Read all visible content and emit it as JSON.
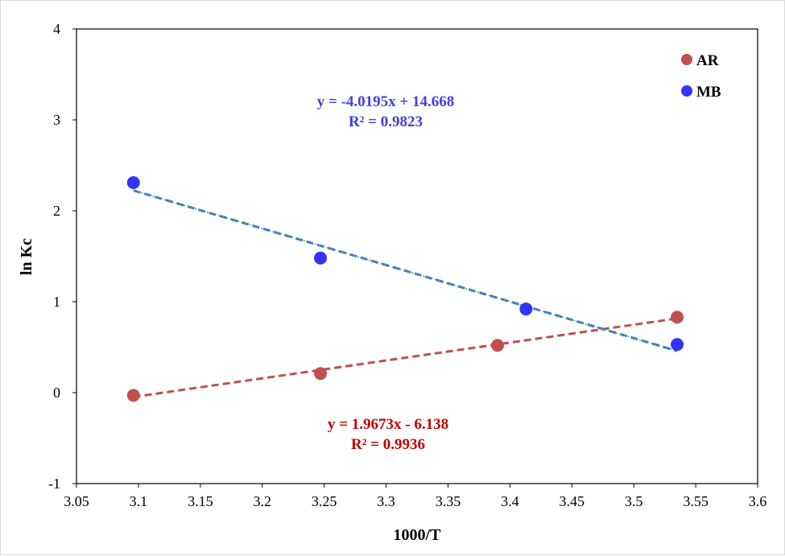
{
  "chart_data": {
    "type": "scatter",
    "title": "",
    "xlabel": "1000/T",
    "ylabel": "ln Kc",
    "xlim": [
      3.05,
      3.6
    ],
    "ylim": [
      -1,
      4
    ],
    "x_ticks": [
      "3.05",
      "3.1",
      "3.15",
      "3.2",
      "3.25",
      "3.3",
      "3.35",
      "3.4",
      "3.45",
      "3.5",
      "3.55",
      "3.6"
    ],
    "y_ticks": [
      "-1",
      "0",
      "1",
      "2",
      "3",
      "4"
    ],
    "grid": false,
    "legend_position": "top-right",
    "series": [
      {
        "name": "AR",
        "color": "#c0504d",
        "trend_color": "#c0504d",
        "x": [
          3.096,
          3.247,
          3.39,
          3.535
        ],
        "y": [
          -0.03,
          0.21,
          0.52,
          0.83
        ],
        "trendline": {
          "slope": 1.9673,
          "intercept": -6.138,
          "x_range": [
            3.096,
            3.535
          ]
        },
        "equation": "y = 1.9673x - 6.138",
        "r2": "R² = 0.9936",
        "label_color": "#c00000"
      },
      {
        "name": "MB",
        "color": "#3333ff",
        "trend_color": "#3f6fd8",
        "trend_color_alt": "#4cb36b",
        "x": [
          3.096,
          3.247,
          3.413,
          3.535
        ],
        "y": [
          2.31,
          1.48,
          0.92,
          0.53
        ],
        "trendline": {
          "slope": -4.0195,
          "intercept": 14.668,
          "x_range": [
            3.096,
            3.535
          ]
        },
        "equation": "y = -4.0195x + 14.668",
        "r2": "R² = 0.9823",
        "label_color": "#3f3fdf"
      }
    ]
  }
}
